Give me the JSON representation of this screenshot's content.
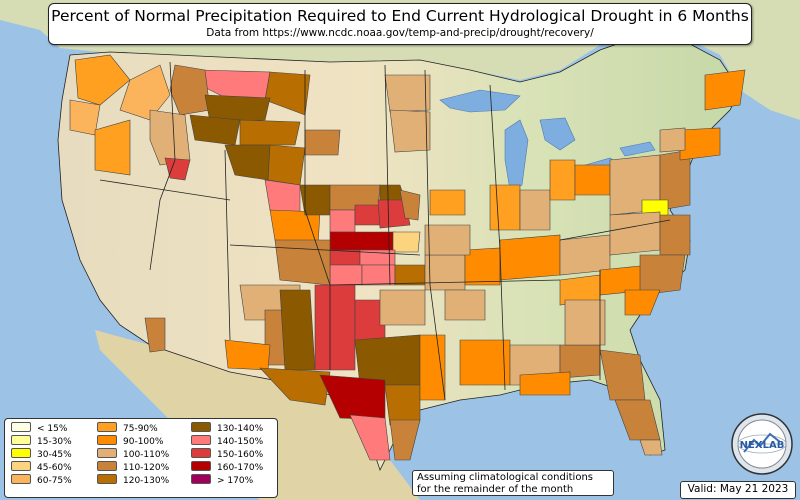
{
  "title": "Percent of Normal Precipitation Required to End Current Hydrological Drought in 6 Months",
  "subtitle": "Data from https://www.ncdc.noaa.gov/temp-and-precip/drought/recovery/",
  "legend": [
    {
      "label": "< 15%",
      "color": "#ffffe6"
    },
    {
      "label": "15-30%",
      "color": "#ffff99"
    },
    {
      "label": "30-45%",
      "color": "#ffff00"
    },
    {
      "label": "45-60%",
      "color": "#fcd37f"
    },
    {
      "label": "60-75%",
      "color": "#fcb45c"
    },
    {
      "label": "75-90%",
      "color": "#ffa020"
    },
    {
      "label": "90-100%",
      "color": "#ff8c00"
    },
    {
      "label": "100-110%",
      "color": "#e0b076"
    },
    {
      "label": "110-120%",
      "color": "#c8823a"
    },
    {
      "label": "120-130%",
      "color": "#b86e00"
    },
    {
      "label": "130-140%",
      "color": "#8b5a00"
    },
    {
      "label": "140-150%",
      "color": "#ff7a7a"
    },
    {
      "label": "150-160%",
      "color": "#dc3c3c"
    },
    {
      "label": "160-170%",
      "color": "#b40000"
    },
    {
      "label": "> 170%",
      "color": "#a0005a"
    }
  ],
  "note_line1": "Assuming climatological conditions",
  "note_line2": "for the remainder of the month",
  "valid": "Valid: May 21 2023",
  "logo_text": "NEXLAB",
  "map_colors": {
    "ocean": "#9cc3e6",
    "land": "#e9dfb8",
    "land_green": "#c9d9a6",
    "lake": "#7eaee0",
    "border": "#222222"
  }
}
